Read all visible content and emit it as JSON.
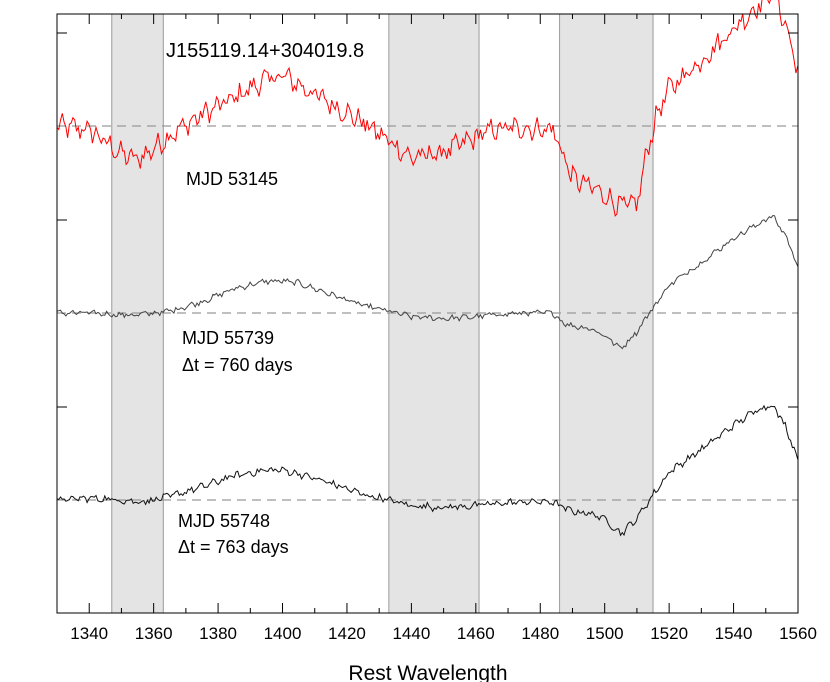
{
  "chart_data": {
    "type": "line",
    "title": "J155119.14+304019.8",
    "xlabel": "Rest Wavelength",
    "ylabel": "",
    "xlim": [
      1330,
      1560
    ],
    "x_ticks": [
      1340,
      1360,
      1380,
      1400,
      1420,
      1440,
      1460,
      1480,
      1500,
      1520,
      1540,
      1560
    ],
    "y_ticks_labeled": false,
    "grid": false,
    "shaded_regions": [
      [
        1347,
        1363
      ],
      [
        1433,
        1461
      ],
      [
        1486,
        1515
      ]
    ],
    "colors": {
      "epoch1": "#ff0000",
      "epoch2": "#444444",
      "epoch3": "#111111",
      "shade": "#e4e4e4",
      "continuum": "#999999"
    },
    "series": [
      {
        "name": "MJD 53145",
        "offset_baseline": 2.0,
        "annotation": "",
        "x": [
          1330,
          1340,
          1350,
          1355,
          1360,
          1365,
          1375,
          1385,
          1395,
          1400,
          1405,
          1415,
          1425,
          1433,
          1440,
          1450,
          1460,
          1465,
          1475,
          1484,
          1487,
          1490,
          1495,
          1500,
          1505,
          1510,
          1513,
          1516,
          1520,
          1530,
          1540,
          1548,
          1552,
          1556,
          1560
        ],
        "values": [
          1.0,
          0.98,
          0.85,
          0.82,
          0.88,
          0.95,
          1.06,
          1.15,
          1.25,
          1.27,
          1.22,
          1.12,
          1.02,
          0.92,
          0.83,
          0.86,
          0.94,
          0.98,
          0.99,
          0.98,
          0.85,
          0.72,
          0.68,
          0.63,
          0.57,
          0.58,
          0.85,
          1.05,
          1.2,
          1.35,
          1.52,
          1.65,
          1.74,
          1.55,
          1.3
        ]
      },
      {
        "name": "MJD 55739",
        "offset_baseline": 1.0,
        "annotation": "Δt = 760 days",
        "x": [
          1330,
          1340,
          1350,
          1355,
          1360,
          1365,
          1375,
          1385,
          1395,
          1400,
          1405,
          1415,
          1425,
          1433,
          1440,
          1450,
          1460,
          1465,
          1475,
          1484,
          1487,
          1490,
          1495,
          1500,
          1505,
          1510,
          1513,
          1516,
          1520,
          1530,
          1540,
          1548,
          1552,
          1556,
          1560
        ],
        "values": [
          1.0,
          1.0,
          0.99,
          0.99,
          1.0,
          1.01,
          1.06,
          1.13,
          1.17,
          1.17,
          1.16,
          1.1,
          1.04,
          1.01,
          0.98,
          0.97,
          0.98,
          0.99,
          1.0,
          1.0,
          0.95,
          0.93,
          0.92,
          0.88,
          0.81,
          0.9,
          0.98,
          1.05,
          1.15,
          1.27,
          1.4,
          1.48,
          1.52,
          1.42,
          1.25
        ]
      },
      {
        "name": "MJD 55748",
        "offset_baseline": 0.0,
        "annotation": "Δt = 763 days",
        "x": [
          1330,
          1340,
          1350,
          1355,
          1360,
          1365,
          1375,
          1385,
          1395,
          1400,
          1405,
          1415,
          1425,
          1433,
          1440,
          1450,
          1460,
          1465,
          1475,
          1484,
          1487,
          1490,
          1495,
          1500,
          1505,
          1510,
          1513,
          1516,
          1520,
          1530,
          1540,
          1548,
          1552,
          1556,
          1560
        ],
        "values": [
          1.0,
          1.01,
          1.0,
          0.99,
          1.0,
          1.02,
          1.07,
          1.13,
          1.16,
          1.16,
          1.14,
          1.09,
          1.03,
          1.0,
          0.97,
          0.96,
          0.97,
          0.98,
          0.99,
          0.99,
          0.96,
          0.94,
          0.93,
          0.9,
          0.82,
          0.9,
          0.98,
          1.05,
          1.15,
          1.27,
          1.4,
          1.49,
          1.51,
          1.4,
          1.22
        ]
      }
    ]
  }
}
